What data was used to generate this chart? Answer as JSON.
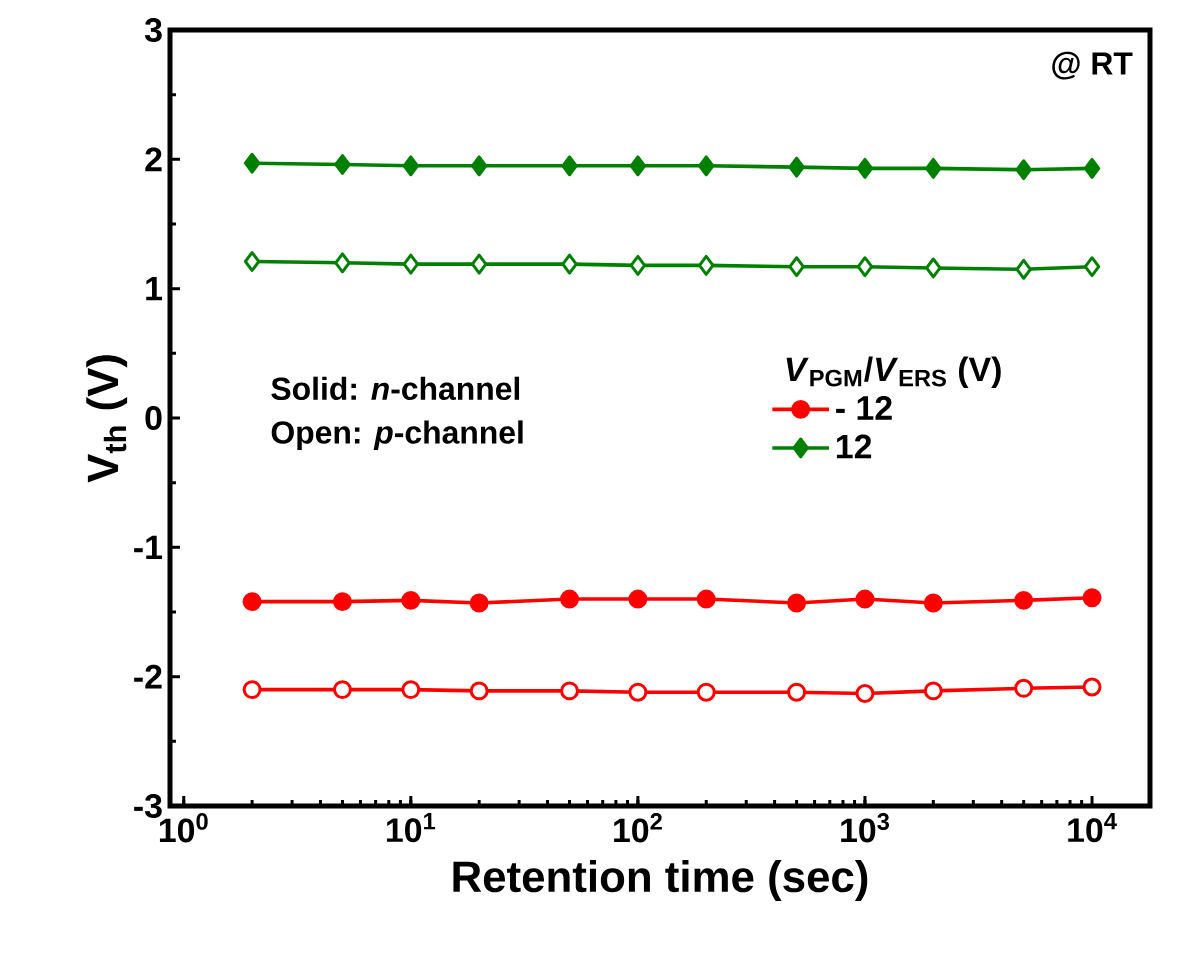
{
  "chart_data": {
    "type": "line",
    "xlabel": "Retention time (sec)",
    "ylabel": "V$_{th}$ (V)",
    "legend_title": "*V*$_{PGM}$/*V*$_{ERS}$ (V)",
    "annotations": [
      "@ RT",
      "Solid: *n*-channel",
      "Open: *p*-channel"
    ],
    "x": [
      2,
      5,
      10,
      20,
      50,
      100,
      200,
      500,
      1000,
      2000,
      5000,
      10000
    ],
    "series": [
      {
        "name": "- 12",
        "color": "#ff0000",
        "marker": "circle",
        "values": [
          -1.42,
          -1.42,
          -1.41,
          -1.43,
          -1.4,
          -1.4,
          -1.4,
          -1.43,
          -1.4,
          -1.43,
          -1.41,
          -1.39
        ]
      },
      {
        "name": "12",
        "color": "#008000",
        "marker": "diamond",
        "values": [
          1.97,
          1.96,
          1.95,
          1.95,
          1.95,
          1.95,
          1.95,
          1.94,
          1.93,
          1.93,
          1.92,
          1.93
        ]
      },
      {
        "color": "#ff0000",
        "marker": "circle",
        "values": [
          -2.1,
          -2.1,
          -2.1,
          -2.11,
          -2.11,
          -2.12,
          -2.12,
          -2.12,
          -2.13,
          -2.11,
          -2.09,
          -2.08
        ]
      },
      {
        "color": "#008000",
        "marker": "diamond",
        "values": [
          1.21,
          1.2,
          1.19,
          1.19,
          1.19,
          1.18,
          1.18,
          1.17,
          1.17,
          1.16,
          1.15,
          1.17
        ]
      }
    ],
    "log": "x",
    "xlim": [
      0.87,
      18000
    ],
    "ylim": [
      -3,
      3
    ],
    "xticks": [
      {
        "value": 1,
        "label": "10$^{0}$"
      },
      {
        "value": 10,
        "label": "10$^{1}$"
      },
      {
        "value": 100,
        "label": "10$^{2}$"
      },
      {
        "value": 1000,
        "label": "10$^{3}$"
      },
      {
        "value": 10000,
        "label": "10$^{4}$"
      }
    ],
    "yticks": [
      -3,
      -2,
      -1,
      0,
      1,
      2,
      3
    ],
    "legend": "right",
    "grid": false,
    "line_style": "solid"
  }
}
